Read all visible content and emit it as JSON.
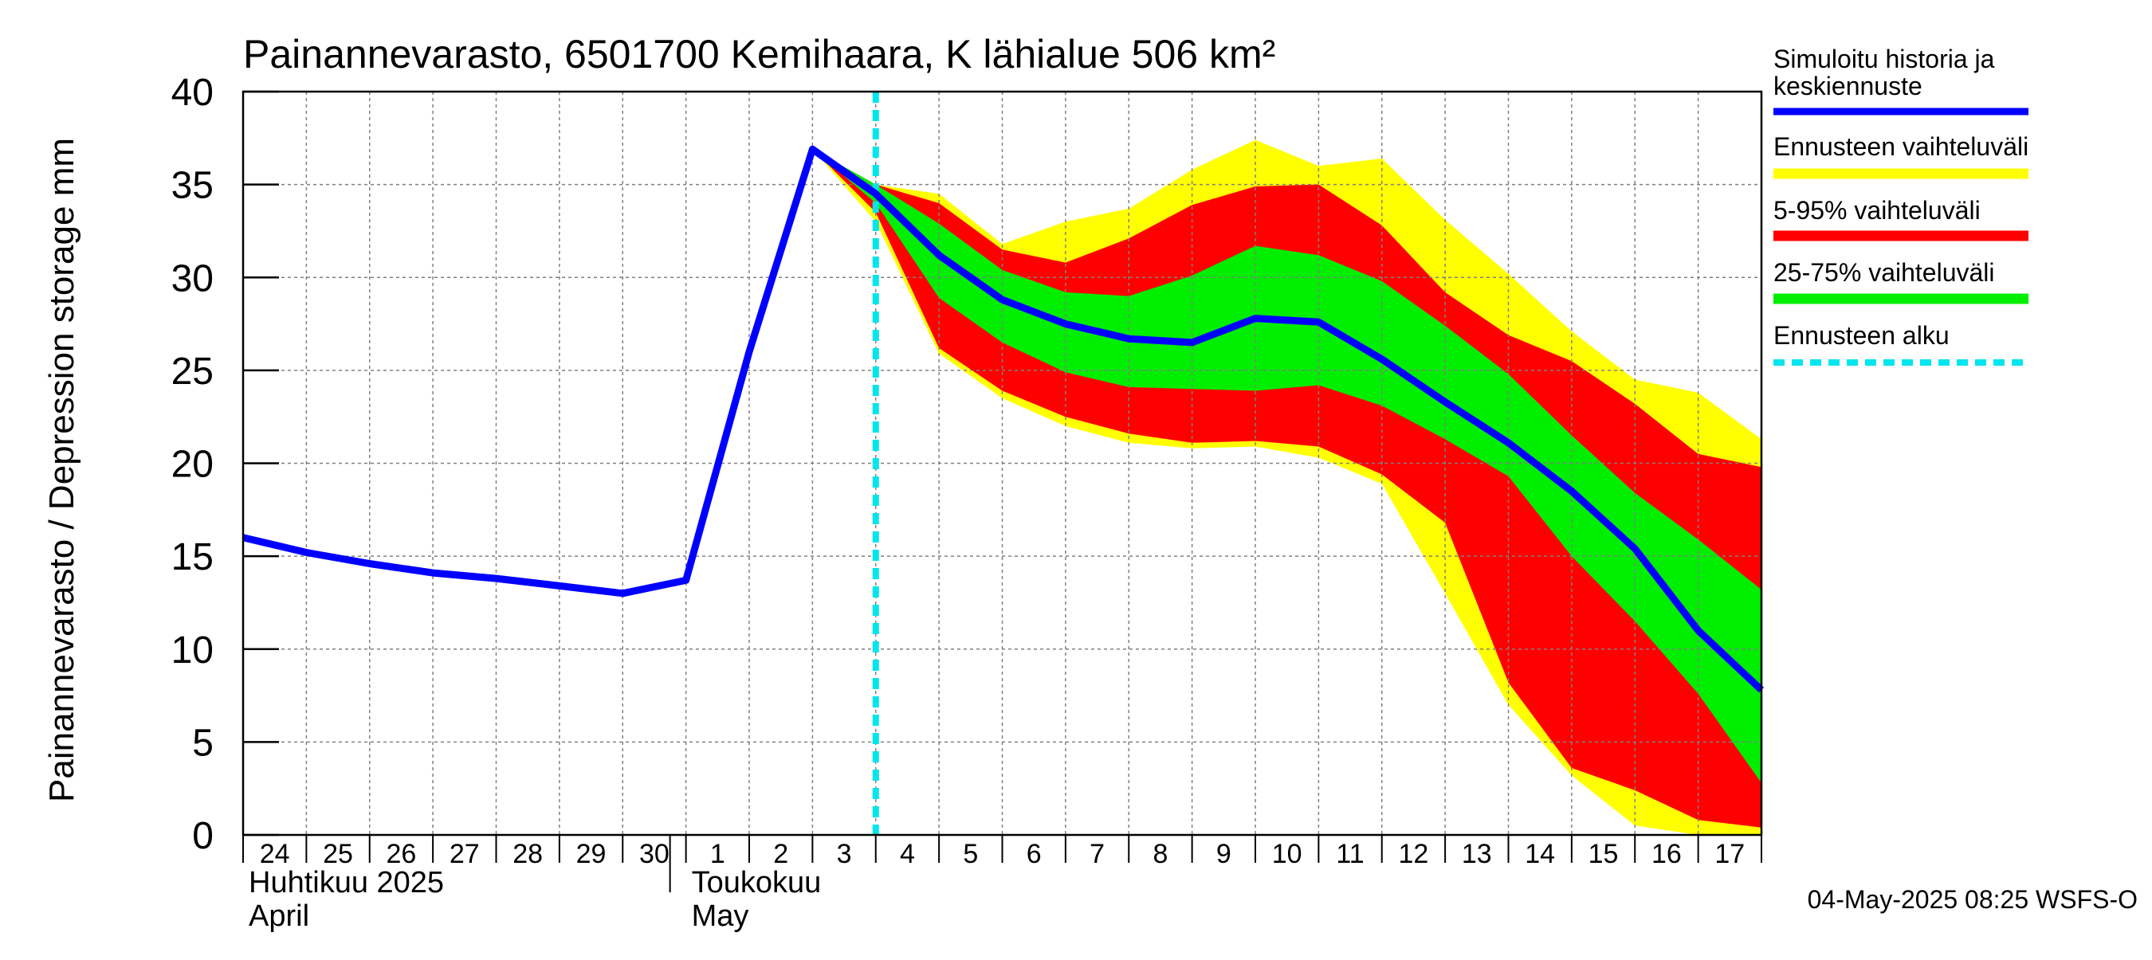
{
  "chart_data": {
    "type": "area",
    "title": "Painannevarasto, 6501700 Kemihaara, K lähialue 506 km²",
    "ylabel": "Painannevarasto / Depression storage    mm",
    "ylim": [
      0,
      40
    ],
    "yticks": [
      "0",
      "5",
      "10",
      "15",
      "20",
      "25",
      "30",
      "35",
      "40"
    ],
    "xlim": [
      0,
      24
    ],
    "day_ticks": [
      "24",
      "25",
      "26",
      "27",
      "28",
      "29",
      "30",
      "1",
      "2",
      "3",
      "4",
      "5",
      "6",
      "7",
      "8",
      "9",
      "10",
      "11",
      "12",
      "13",
      "14",
      "15",
      "16",
      "17"
    ],
    "month_labels": [
      {
        "fi": "Huhtikuu  2025",
        "en": "April",
        "start_index": 0
      },
      {
        "fi": "Toukokuu",
        "en": "May",
        "start_index": 7
      }
    ],
    "forecast_start_x": 10,
    "grid": true,
    "legend_placement": "right",
    "legend": [
      {
        "label": "Simuloitu historia ja\nkeskiennuste",
        "color": "#0000ff",
        "style": "line"
      },
      {
        "label": "Ennusteen vaihteluväli",
        "color": "#ffff00",
        "style": "band"
      },
      {
        "label": "5-95% vaihteluväli",
        "color": "#ff0000",
        "style": "band"
      },
      {
        "label": "25-75% vaihteluväli",
        "color": "#00ee00",
        "style": "band"
      },
      {
        "label": "Ennusteen alku",
        "color": "#00e5ee",
        "style": "dashed"
      }
    ],
    "series": {
      "median": {
        "x": [
          0,
          1,
          2,
          3,
          4,
          5,
          6,
          7,
          8,
          9,
          10,
          11,
          12,
          13,
          14,
          15,
          16,
          17,
          18,
          19,
          20,
          21,
          22,
          23,
          24
        ],
        "y": [
          16.0,
          15.2,
          14.6,
          14.1,
          13.8,
          13.4,
          13.0,
          13.7,
          26.0,
          36.9,
          34.5,
          31.2,
          28.8,
          27.5,
          26.7,
          26.5,
          27.8,
          27.6,
          25.6,
          23.3,
          21.1,
          18.5,
          15.4,
          11.0,
          7.8
        ]
      },
      "bands_x": [
        9,
        10,
        11,
        12,
        13,
        14,
        15,
        16,
        17,
        18,
        19,
        20,
        21,
        22,
        23,
        24
      ],
      "range_upper": [
        36.9,
        35.0,
        34.5,
        31.8,
        33.0,
        33.7,
        35.8,
        37.4,
        36.0,
        36.4,
        33.1,
        30.2,
        27.1,
        24.5,
        23.8,
        21.3
      ],
      "range_lower": [
        36.9,
        33.0,
        25.9,
        23.5,
        22.0,
        21.1,
        20.8,
        20.9,
        20.3,
        18.9,
        13.0,
        7.0,
        3.2,
        0.5,
        0.0,
        0.0
      ],
      "p95": [
        36.9,
        35.0,
        34.0,
        31.5,
        30.8,
        32.1,
        33.9,
        34.9,
        35.0,
        32.8,
        29.2,
        26.9,
        25.5,
        23.2,
        20.5,
        19.8
      ],
      "p05": [
        36.9,
        33.5,
        26.2,
        23.9,
        22.5,
        21.6,
        21.1,
        21.2,
        20.9,
        19.4,
        16.8,
        8.2,
        3.6,
        2.4,
        0.8,
        0.4
      ],
      "p75": [
        36.9,
        35.0,
        32.9,
        30.4,
        29.2,
        29.0,
        30.1,
        31.7,
        31.2,
        29.8,
        27.4,
        24.8,
        21.5,
        18.4,
        15.9,
        13.2
      ],
      "p25": [
        36.9,
        34.0,
        28.9,
        26.5,
        24.9,
        24.1,
        24.0,
        23.9,
        24.2,
        23.1,
        21.3,
        19.3,
        15.0,
        11.5,
        7.6,
        2.8
      ]
    },
    "timestamp": "04-May-2025 08:25 WSFS-O"
  }
}
